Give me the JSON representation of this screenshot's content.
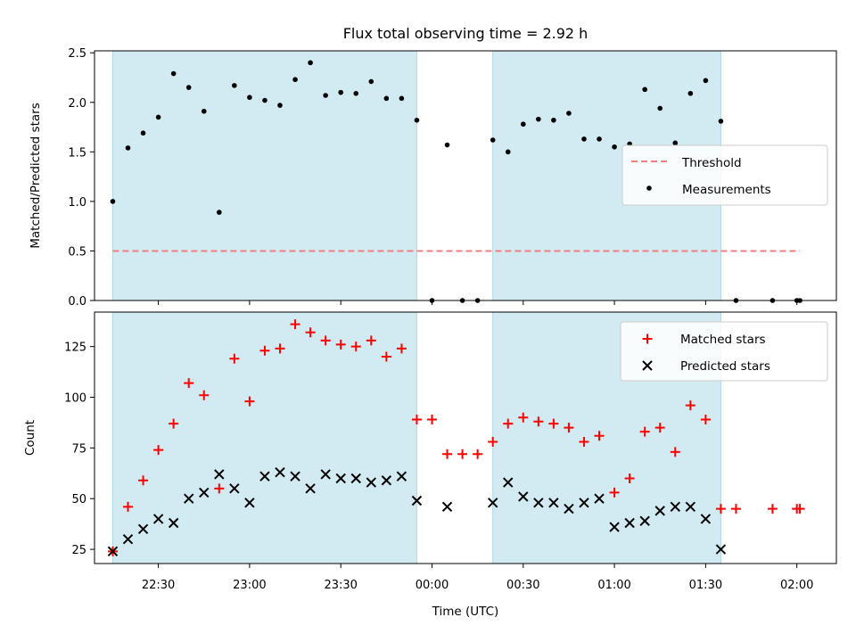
{
  "title": "Flux total observing time = 2.92 h",
  "top_ylabel": "Matched/Predicted stars",
  "bottom_ylabel": "Count",
  "xlabel": "Time (UTC)",
  "colors": {
    "shade": "#add8e6",
    "measure": "#000000",
    "threshold": "#f08080",
    "matched": "#ff0000",
    "predicted": "#000000"
  },
  "chart_data": [
    {
      "type": "scatter",
      "ylabel": "Matched/Predicted stars",
      "xlim": [
        "22:09",
        "02:13"
      ],
      "ylim": [
        0,
        2.52
      ],
      "x_ticks": [
        "22:30",
        "23:00",
        "23:30",
        "00:00",
        "00:30",
        "01:00",
        "01:30",
        "02:00"
      ],
      "y_ticks": [
        "0.0",
        "0.5",
        "1.0",
        "1.5",
        "2.0",
        "2.5"
      ],
      "shaded_spans": [
        [
          "22:15",
          "23:55"
        ],
        [
          "00:20",
          "01:35"
        ]
      ],
      "threshold": {
        "name": "Threshold",
        "value": 0.5,
        "x_range": [
          "22:15",
          "02:01"
        ]
      },
      "legend": {
        "position": "center-right",
        "entries": [
          "Threshold",
          "Measurements"
        ]
      },
      "series": [
        {
          "name": "Measurements",
          "x": [
            "22:15",
            "22:20",
            "22:25",
            "22:30",
            "22:35",
            "22:40",
            "22:45",
            "22:50",
            "22:55",
            "23:00",
            "23:05",
            "23:10",
            "23:15",
            "23:20",
            "23:25",
            "23:30",
            "23:35",
            "23:40",
            "23:45",
            "23:50",
            "23:55",
            "00:00",
            "00:05",
            "00:10",
            "00:15",
            "00:20",
            "00:25",
            "00:30",
            "00:35",
            "00:40",
            "00:45",
            "00:50",
            "00:55",
            "01:00",
            "01:05",
            "01:10",
            "01:15",
            "01:20",
            "01:25",
            "01:30",
            "01:35",
            "01:40",
            "01:52",
            "02:00",
            "02:01"
          ],
          "y": [
            1.0,
            1.54,
            1.69,
            1.85,
            2.29,
            2.15,
            1.91,
            0.89,
            2.17,
            2.05,
            2.02,
            1.97,
            2.23,
            2.4,
            2.07,
            2.1,
            2.09,
            2.21,
            2.04,
            2.04,
            1.82,
            0.0,
            1.57,
            0.0,
            0.0,
            1.62,
            1.5,
            1.78,
            1.83,
            1.82,
            1.89,
            1.63,
            1.63,
            1.55,
            1.58,
            2.13,
            1.94,
            1.59,
            2.09,
            2.22,
            1.81,
            0.0,
            0.0,
            0.0,
            0.0
          ]
        }
      ]
    },
    {
      "type": "scatter",
      "xlabel": "Time (UTC)",
      "ylabel": "Count",
      "xlim": [
        "22:09",
        "02:13"
      ],
      "ylim": [
        18,
        142
      ],
      "x_ticks": [
        "22:30",
        "23:00",
        "23:30",
        "00:00",
        "00:30",
        "01:00",
        "01:30",
        "02:00"
      ],
      "y_ticks": [
        "25",
        "50",
        "75",
        "100",
        "125"
      ],
      "shaded_spans": [
        [
          "22:15",
          "23:55"
        ],
        [
          "00:20",
          "01:35"
        ]
      ],
      "legend": {
        "position": "top-right",
        "entries": [
          "Matched stars",
          "Predicted stars"
        ]
      },
      "series": [
        {
          "name": "Matched stars",
          "x": [
            "22:15",
            "22:20",
            "22:25",
            "22:30",
            "22:35",
            "22:40",
            "22:45",
            "22:50",
            "22:55",
            "23:00",
            "23:05",
            "23:10",
            "23:15",
            "23:20",
            "23:25",
            "23:30",
            "23:35",
            "23:40",
            "23:45",
            "23:50",
            "23:55",
            "00:00",
            "00:05",
            "00:10",
            "00:15",
            "00:20",
            "00:25",
            "00:30",
            "00:35",
            "00:40",
            "00:45",
            "00:50",
            "00:55",
            "01:00",
            "01:05",
            "01:10",
            "01:15",
            "01:20",
            "01:25",
            "01:30",
            "01:35",
            "01:40",
            "01:52",
            "02:00",
            "02:01"
          ],
          "y": [
            24,
            46,
            59,
            74,
            87,
            107,
            101,
            55,
            119,
            98,
            123,
            124,
            136,
            132,
            128,
            126,
            125,
            128,
            120,
            124,
            89,
            89,
            72,
            72,
            72,
            78,
            87,
            90,
            88,
            87,
            85,
            78,
            81,
            53,
            60,
            83,
            85,
            73,
            96,
            89,
            45,
            45,
            45,
            45,
            45
          ]
        },
        {
          "name": "Predicted stars",
          "x": [
            "22:15",
            "22:20",
            "22:25",
            "22:30",
            "22:35",
            "22:40",
            "22:45",
            "22:50",
            "22:55",
            "23:00",
            "23:05",
            "23:10",
            "23:15",
            "23:20",
            "23:25",
            "23:30",
            "23:35",
            "23:40",
            "23:45",
            "23:50",
            "23:55",
            "00:05",
            "00:20",
            "00:25",
            "00:30",
            "00:35",
            "00:40",
            "00:45",
            "00:50",
            "00:55",
            "01:00",
            "01:05",
            "01:10",
            "01:15",
            "01:20",
            "01:25",
            "01:30",
            "01:35"
          ],
          "y": [
            24,
            30,
            35,
            40,
            38,
            50,
            53,
            62,
            55,
            48,
            61,
            63,
            61,
            55,
            62,
            60,
            60,
            58,
            59,
            61,
            49,
            46,
            48,
            58,
            51,
            48,
            48,
            45,
            48,
            50,
            36,
            38,
            39,
            44,
            46,
            46,
            40,
            25
          ]
        }
      ]
    }
  ]
}
